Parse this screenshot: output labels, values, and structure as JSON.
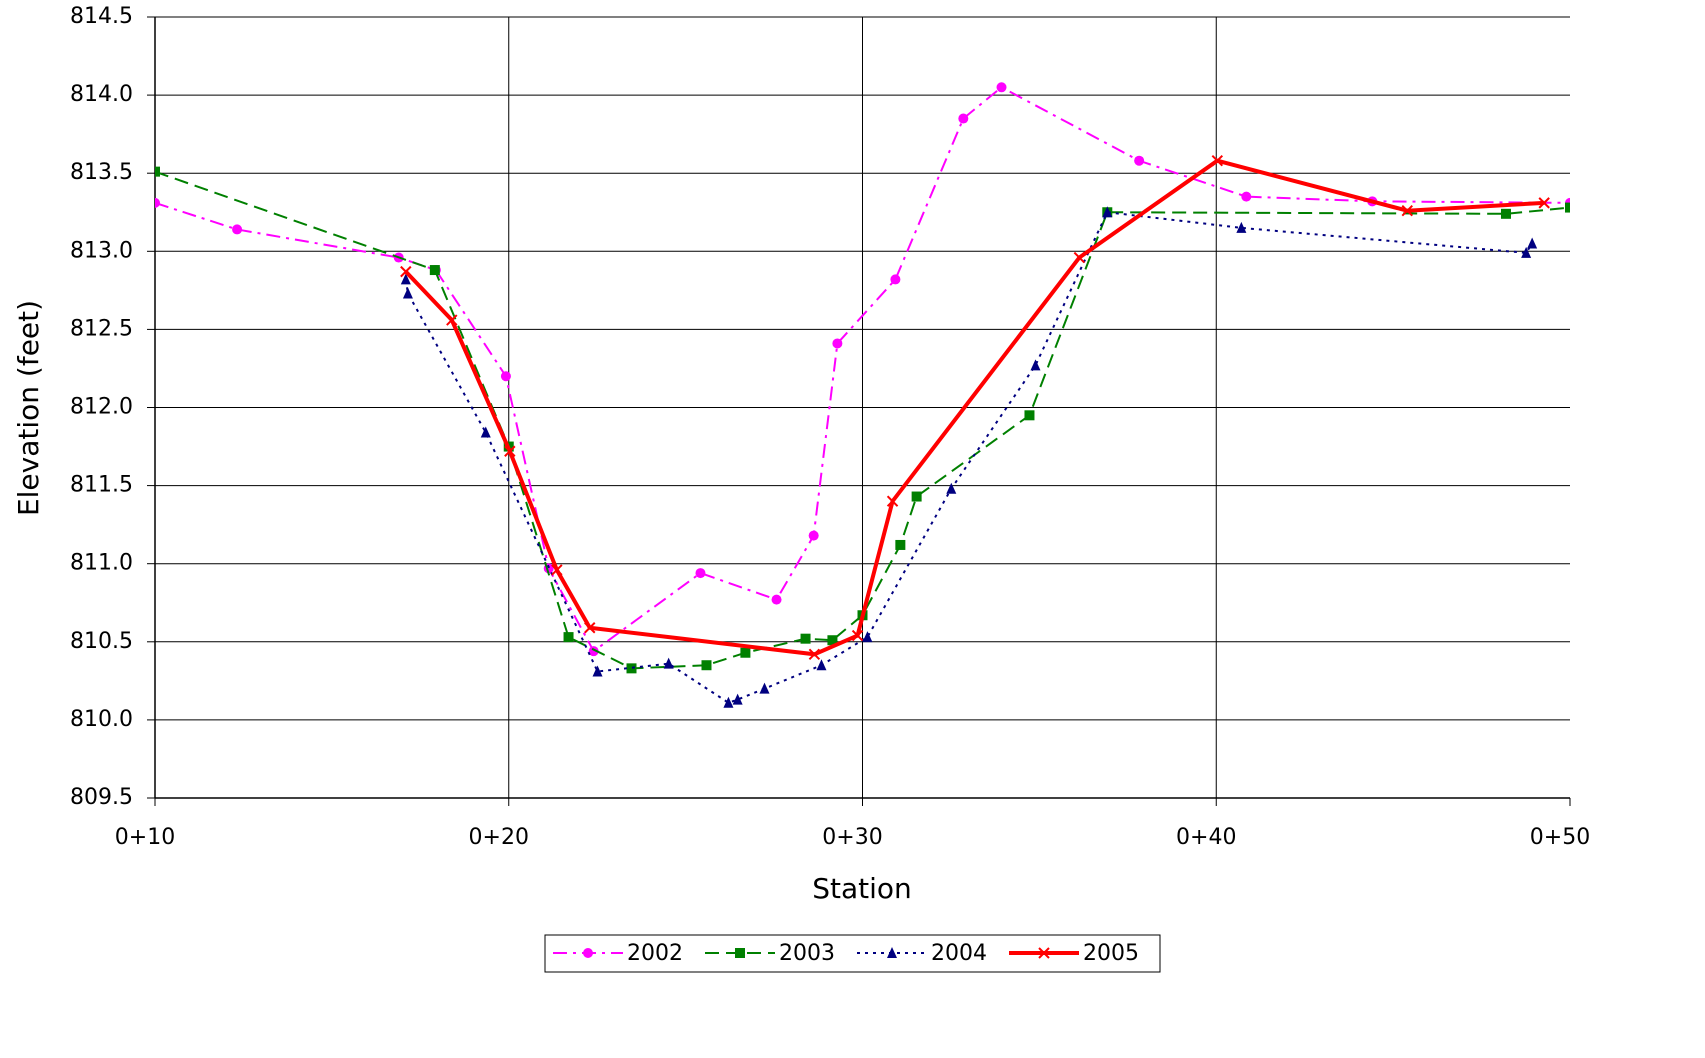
{
  "chart_data": {
    "type": "line",
    "x_label": "Station",
    "y_label": "Elevation (feet)",
    "xlim": [
      10,
      50
    ],
    "ylim": [
      809.5,
      814.5
    ],
    "xticks": [
      {
        "value": 10,
        "label": "0+10"
      },
      {
        "value": 20,
        "label": "0+20"
      },
      {
        "value": 30,
        "label": "0+30"
      },
      {
        "value": 40,
        "label": "0+40"
      },
      {
        "value": 50,
        "label": "0+50"
      }
    ],
    "yticks": [
      814.5,
      {
        "value": 814,
        "label": "814.0"
      },
      813.5,
      {
        "value": 813,
        "label": "813.0"
      },
      812.5,
      {
        "value": 812,
        "label": "812.0"
      },
      811.5,
      {
        "value": 811,
        "label": "811.0"
      },
      810.5,
      {
        "value": 810,
        "label": "810.0"
      },
      809.5
    ],
    "grid": true,
    "legend": "bottom",
    "series": [
      {
        "name": "2002",
        "color": "#ff00ff",
        "dash": "dashdot",
        "marker": "circle",
        "x": [
          10,
          12.32,
          16.89,
          17.94,
          19.92,
          21.13,
          22.4,
          25.42,
          27.57,
          28.62,
          29.29,
          30.93,
          32.85,
          33.93,
          37.82,
          40.85,
          44.41,
          50
        ],
        "values": [
          813.31,
          813.14,
          812.96,
          812.88,
          812.2,
          810.97,
          810.44,
          810.94,
          810.77,
          811.18,
          812.41,
          812.82,
          813.85,
          814.05,
          813.58,
          813.35,
          813.32,
          813.31
        ]
      },
      {
        "name": "2003",
        "color": "#008000",
        "dash": "dashed",
        "marker": "square",
        "x": [
          10,
          17.91,
          20.0,
          21.69,
          23.47,
          25.59,
          26.69,
          28.39,
          29.15,
          30.0,
          31.07,
          31.53,
          34.72,
          36.92,
          48.19,
          50
        ],
        "values": [
          813.51,
          812.88,
          811.75,
          810.53,
          810.33,
          810.35,
          810.43,
          810.52,
          810.51,
          810.67,
          811.12,
          811.43,
          811.95,
          813.25,
          813.24,
          813.28
        ]
      },
      {
        "name": "2004",
        "color": "#000080",
        "dash": "dotted",
        "marker": "triangle",
        "x": [
          17.09,
          17.15,
          19.35,
          22.51,
          24.52,
          26.21,
          26.47,
          27.23,
          28.84,
          30.14,
          32.51,
          34.89,
          36.92,
          40.71,
          48.76,
          48.93
        ],
        "values": [
          812.82,
          812.73,
          811.84,
          810.31,
          810.36,
          810.11,
          810.13,
          810.2,
          810.35,
          810.53,
          811.48,
          812.27,
          813.25,
          813.15,
          812.99,
          813.05
        ]
      },
      {
        "name": "2005",
        "color": "#ff0000",
        "dash": "solid",
        "marker": "x",
        "x": [
          17.09,
          18.39,
          20.03,
          21.36,
          22.29,
          28.64,
          29.86,
          30.85,
          36.13,
          40.03,
          45.4,
          49.27
        ],
        "values": [
          812.87,
          812.56,
          811.72,
          810.96,
          810.59,
          810.42,
          810.54,
          811.4,
          812.96,
          813.58,
          813.26,
          813.31
        ]
      }
    ]
  }
}
